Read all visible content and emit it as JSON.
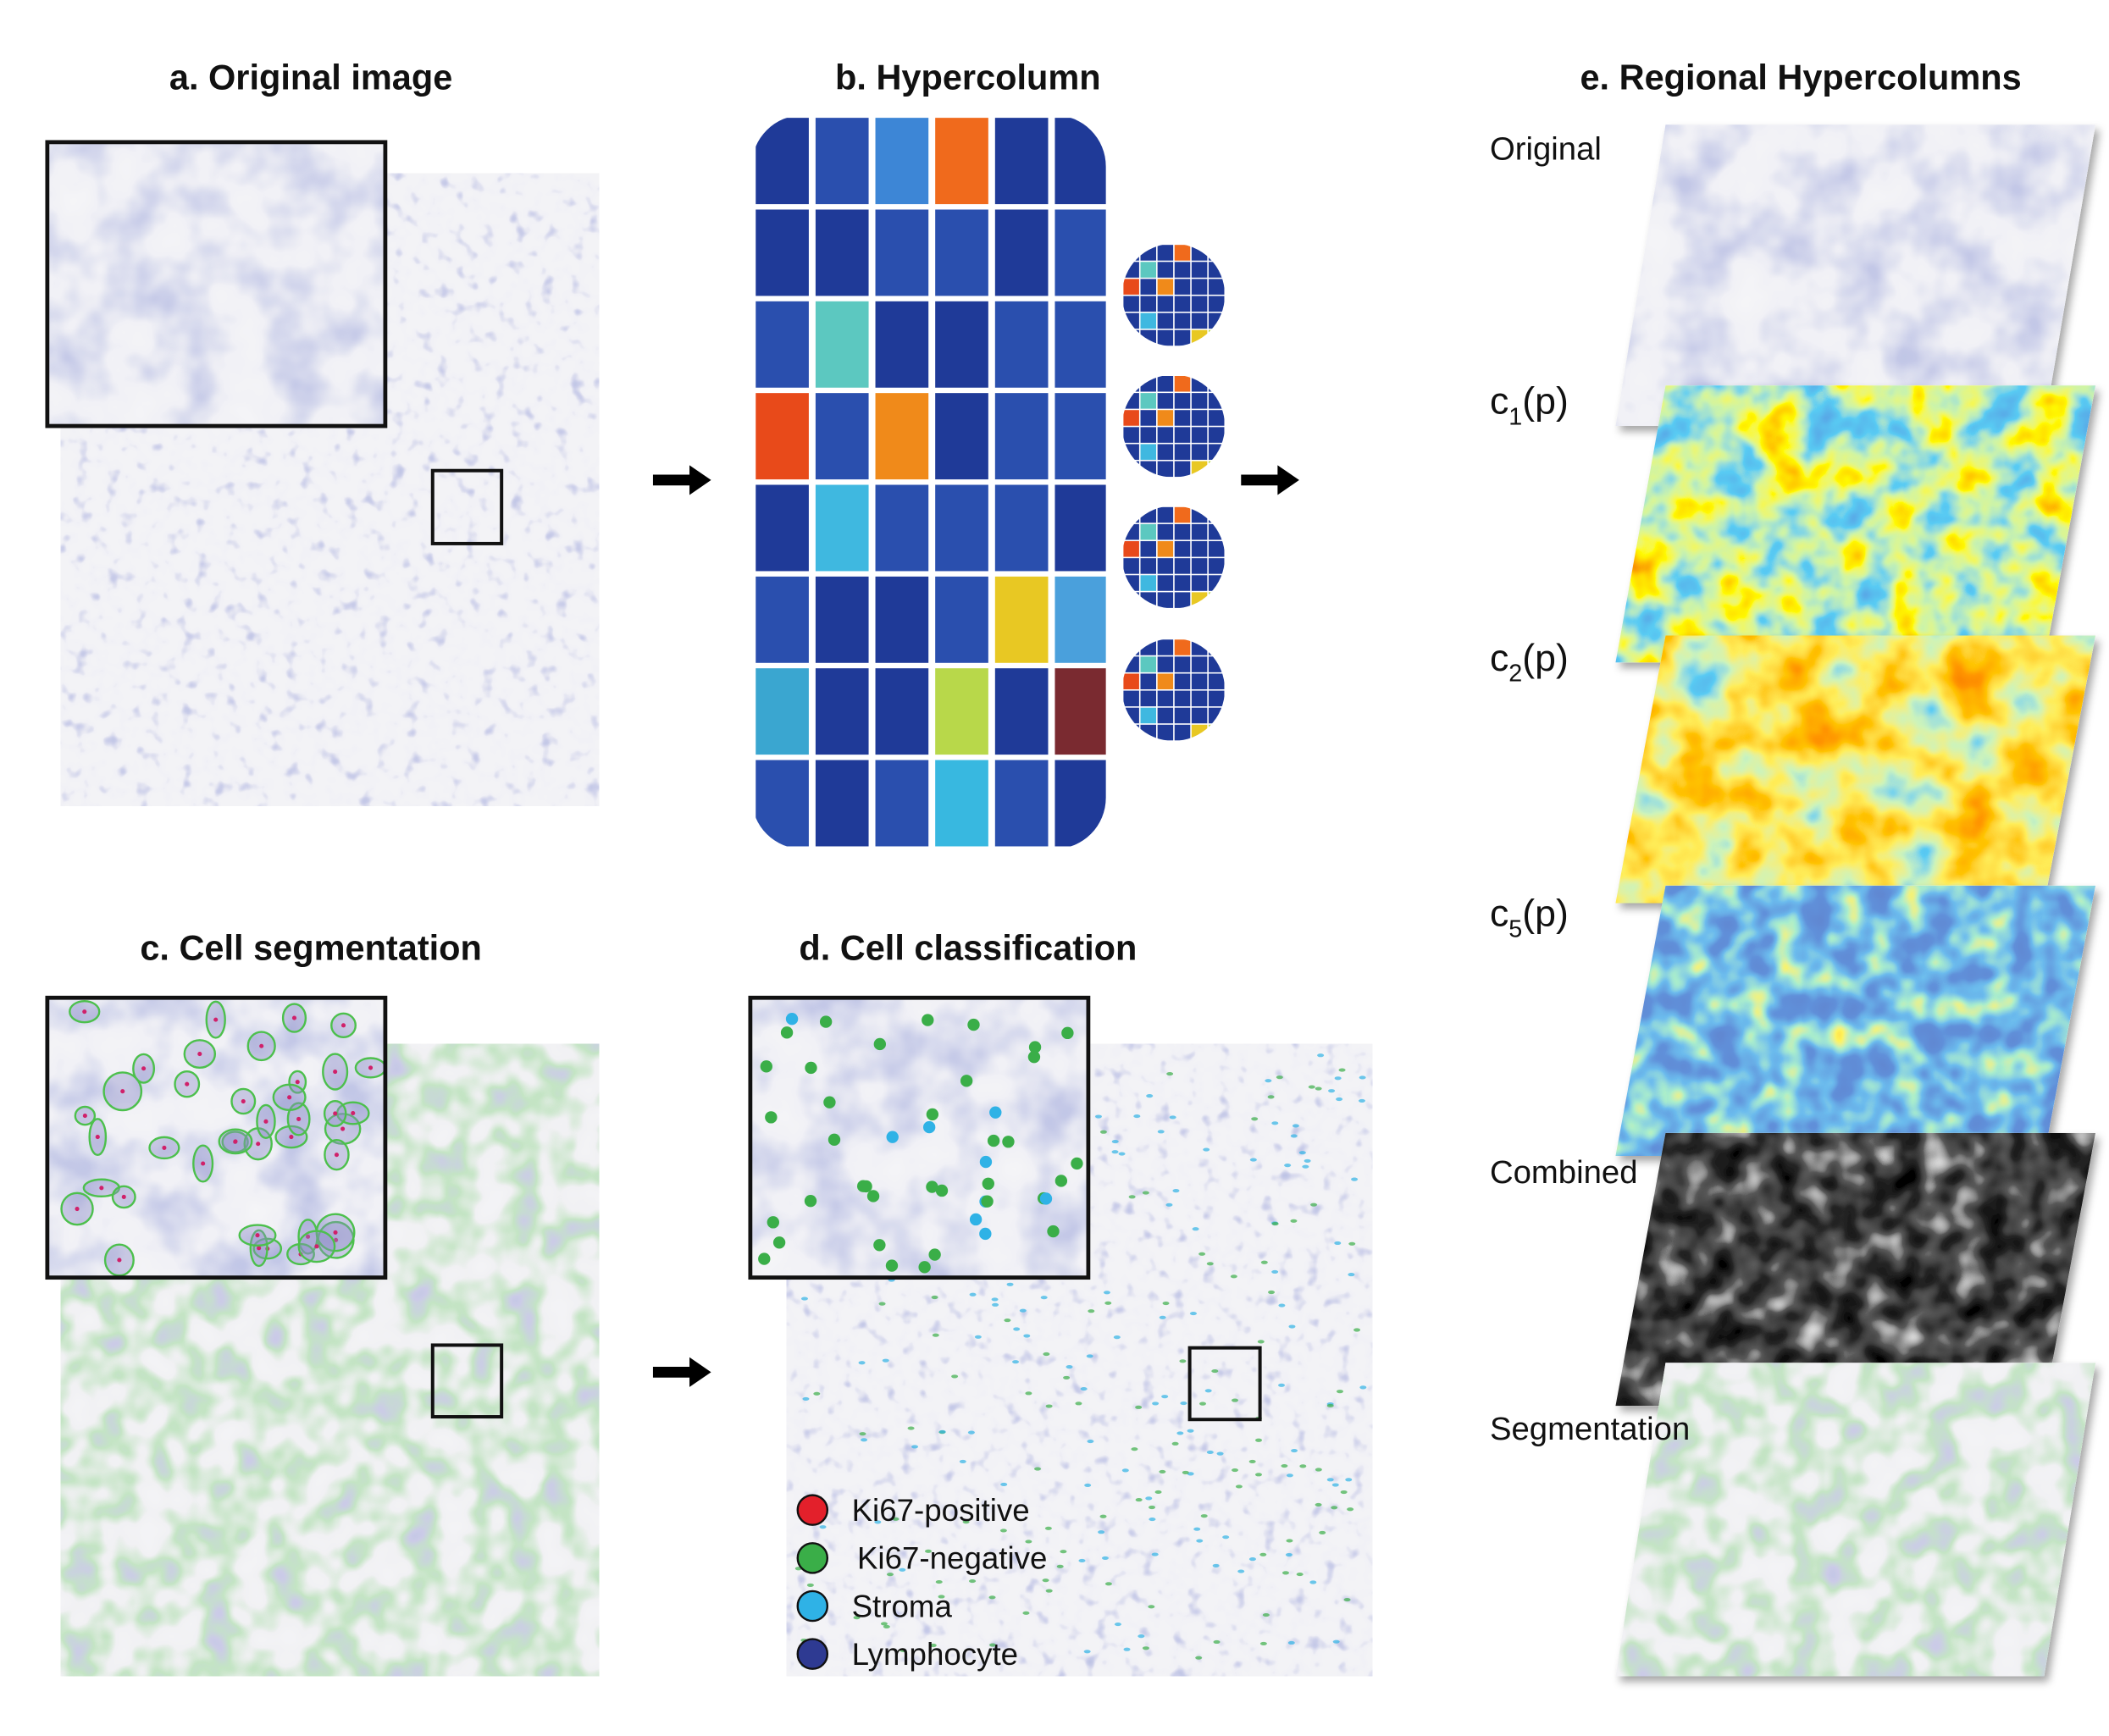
{
  "panels": {
    "a": {
      "title": "a. Original image"
    },
    "b": {
      "title": "b. Hypercolumn"
    },
    "c": {
      "title": "c. Cell segmentation"
    },
    "d": {
      "title": "d. Cell classification",
      "legend": [
        {
          "label": "Ki67-positive",
          "color": "#e3202b"
        },
        {
          "label": "Ki67-negative",
          "color": "#3aae48"
        },
        {
          "label": "Stroma",
          "color": "#2fb2e6"
        },
        {
          "label": "Lymphocyte",
          "color": "#2e3a92"
        }
      ]
    },
    "e": {
      "title": "e. Regional Hypercolumns",
      "layers": [
        {
          "label": "Original"
        },
        {
          "label": "c",
          "sub": "1",
          "suffix": "(p)"
        },
        {
          "label": "c",
          "sub": "2",
          "suffix": "(p)"
        },
        {
          "label": "c",
          "sub": "5",
          "suffix": "(p)"
        },
        {
          "label": "Combined"
        },
        {
          "label": "Segmentation"
        }
      ]
    }
  }
}
